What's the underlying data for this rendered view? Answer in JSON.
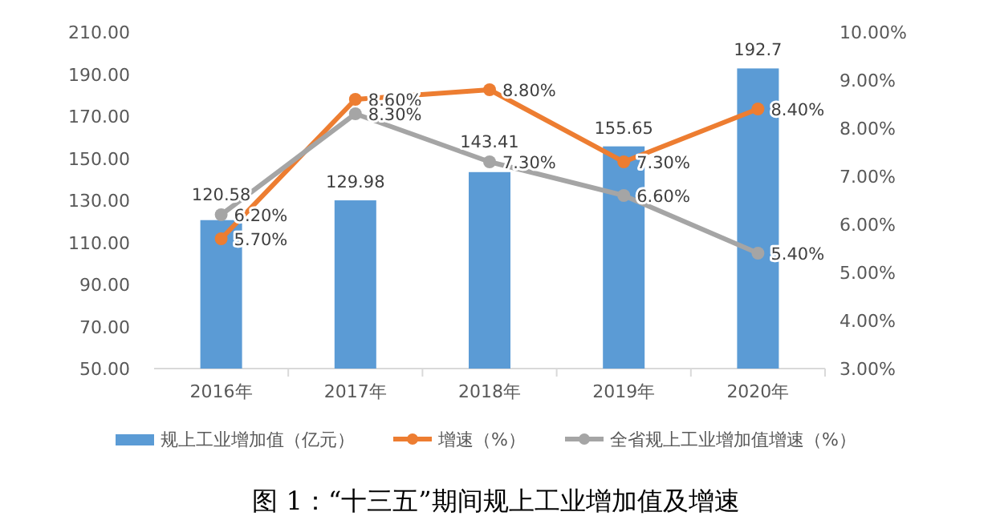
{
  "chart_data": {
    "type": "bar",
    "title": "图 1：“十三五”期间规上工业增加值及增速",
    "categories": [
      "2016年",
      "2017年",
      "2018年",
      "2019年",
      "2020年"
    ],
    "series": [
      {
        "name": "规上工业增加值（亿元）",
        "color": "#5b9bd5",
        "values": [
          120.58,
          129.98,
          143.41,
          155.65,
          192.7
        ],
        "value_labels": [
          "120.58",
          "129.98",
          "143.41",
          "155.65",
          "192.7"
        ]
      },
      {
        "name": "增速（%）",
        "type": "line",
        "axis": "y2",
        "color": "#ed7d31",
        "marker": "circle",
        "values": [
          5.7,
          8.6,
          8.8,
          7.3,
          8.4
        ],
        "value_labels": [
          "5.70%",
          "8.60%",
          "8.80%",
          "7.30%",
          "8.40%"
        ]
      },
      {
        "name": "全省规上工业增加值增速（%）",
        "type": "line",
        "axis": "y2",
        "color": "#a5a5a5",
        "marker": "circle",
        "values": [
          6.2,
          8.3,
          7.3,
          6.6,
          5.4
        ],
        "value_labels": [
          "6.20%",
          "8.30%",
          "7.30%",
          "6.60%",
          "5.40%"
        ]
      }
    ],
    "ylim": [
      50,
      210
    ],
    "yticks": [
      {
        "value": 50,
        "label": "50.00"
      },
      {
        "value": 70,
        "label": "70.00"
      },
      {
        "value": 90,
        "label": "90.00"
      },
      {
        "value": 110,
        "label": "110.00"
      },
      {
        "value": 130,
        "label": "130.00"
      },
      {
        "value": 150,
        "label": "150.00"
      },
      {
        "value": 170,
        "label": "170.00"
      },
      {
        "value": 190,
        "label": "190.00"
      },
      {
        "value": 210,
        "label": "210.00"
      }
    ],
    "y2lim": [
      3,
      10
    ],
    "y2ticks": [
      {
        "value": 3,
        "label": "3.00%"
      },
      {
        "value": 4,
        "label": "4.00%"
      },
      {
        "value": 5,
        "label": "5.00%"
      },
      {
        "value": 6,
        "label": "6.00%"
      },
      {
        "value": 7,
        "label": "7.00%"
      },
      {
        "value": 8,
        "label": "8.00%"
      },
      {
        "value": 9,
        "label": "9.00%"
      },
      {
        "value": 10,
        "label": "10.00%"
      }
    ],
    "legend": "bottom"
  }
}
